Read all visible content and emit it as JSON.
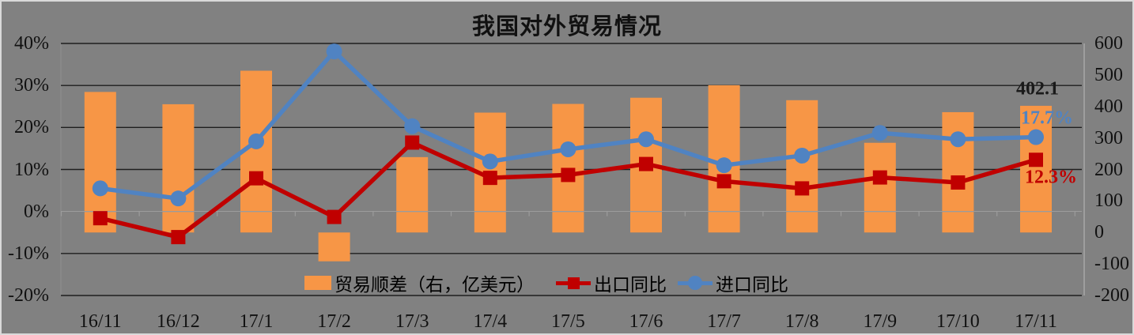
{
  "title": "我国对外贸易情况",
  "colors": {
    "background": "#818181",
    "frame": "#D9D9D9",
    "gridline": "#1F1F1F",
    "category_axis": "#9C9C9C",
    "secondary_axis_line": "#A8A8A8",
    "text": "#111111",
    "bar": "#F79646",
    "export_line": "#C00000",
    "import_line": "#5083C2",
    "annotation_bar": "#1A1A1A"
  },
  "chart_data": {
    "type": "combo bar+line, dual axis",
    "title": "我国对外贸易情况",
    "categories": [
      "16/11",
      "16/12",
      "17/1",
      "17/2",
      "17/3",
      "17/4",
      "17/5",
      "17/6",
      "17/7",
      "17/8",
      "17/9",
      "17/10",
      "17/11"
    ],
    "series": [
      {
        "name": "贸易顺差（右，亿美元）",
        "type": "bar",
        "axis": "right",
        "marker": "rect",
        "values": [
          446.1,
          407.1,
          513.5,
          -91.5,
          239.3,
          380.5,
          408.1,
          427.7,
          467.4,
          419.9,
          284.7,
          381.9,
          402.1
        ]
      },
      {
        "name": "出口同比",
        "type": "line",
        "axis": "left",
        "marker": "square",
        "values": [
          -1.6,
          -6.1,
          7.9,
          -1.3,
          16.4,
          8.0,
          8.7,
          11.3,
          7.2,
          5.5,
          8.1,
          6.9,
          12.3
        ]
      },
      {
        "name": "进口同比",
        "type": "line",
        "axis": "left",
        "marker": "circle",
        "values": [
          5.5,
          3.1,
          16.7,
          38.1,
          20.3,
          11.9,
          14.8,
          17.2,
          11.0,
          13.3,
          18.7,
          17.2,
          17.7
        ]
      }
    ],
    "left_axis": {
      "min": -20,
      "max": 40,
      "unit": "%",
      "ticks": [
        "40%",
        "30%",
        "20%",
        "10%",
        "0%",
        "-10%",
        "-20%"
      ],
      "tick_values": [
        40,
        30,
        20,
        10,
        0,
        -10,
        -20
      ]
    },
    "right_axis": {
      "min": -200,
      "max": 600,
      "ticks": [
        "600",
        "500",
        "400",
        "300",
        "200",
        "100",
        "0",
        "-100",
        "-200"
      ],
      "tick_values": [
        600,
        500,
        400,
        300,
        200,
        100,
        0,
        -100,
        -200
      ]
    },
    "grid": "horizontal only",
    "legend_position": "bottom inside plot"
  },
  "annotations": [
    {
      "text": "402.1",
      "series": "贸易顺差（右，亿美元）"
    },
    {
      "text": "17.7%",
      "series": "进口同比"
    },
    {
      "text": "12.3%",
      "series": "出口同比"
    }
  ]
}
